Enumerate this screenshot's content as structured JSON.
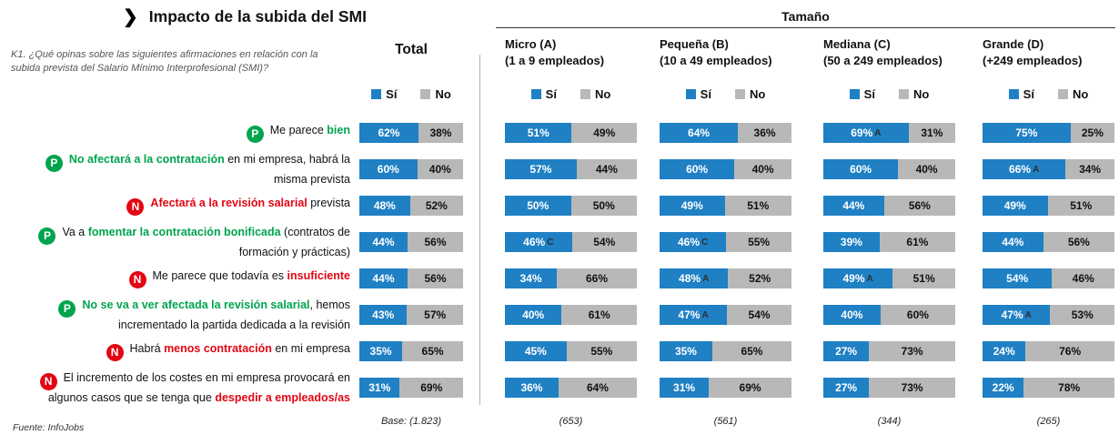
{
  "chart_data": {
    "type": "bar",
    "variant": "horizontal-stacked-100",
    "title": "Impacto de la subida del SMI",
    "title_icon": "❯",
    "question": "K1. ¿Qué opinas sobre las siguientes afirmaciones en relación con la subida prevista del Salario Mínimo Interprofesional (SMI)?",
    "group_header": "Tamaño",
    "legend": {
      "yes": "Sí",
      "no": "No"
    },
    "source": "Fuente: InfoJobs",
    "colors": {
      "yes": "#1f80c4",
      "no": "#b8b8b8",
      "positive": "#00a44e",
      "negative": "#e30613"
    },
    "columns": [
      {
        "id": "total",
        "label": "Total",
        "sublabel": "",
        "base": "Base: (1.823)"
      },
      {
        "id": "micro",
        "label": "Micro (A)",
        "sublabel": "(1 a 9 empleados)",
        "base": "(653)"
      },
      {
        "id": "pequena",
        "label": "Pequeña (B)",
        "sublabel": "(10 a 49 empleados)",
        "base": "(561)"
      },
      {
        "id": "mediana",
        "label": "Mediana (C)",
        "sublabel": "(50 a 249 empleados)",
        "base": "(344)"
      },
      {
        "id": "grande",
        "label": "Grande (D)",
        "sublabel": "(+249 empleados)",
        "base": "(265)"
      }
    ],
    "rows": [
      {
        "badge": "P",
        "segments": [
          {
            "text": "Me parece ",
            "style": "plain"
          },
          {
            "text": "bien",
            "style": "pos"
          }
        ],
        "values": [
          {
            "si": 62,
            "no": 38,
            "note": ""
          },
          {
            "si": 51,
            "no": 49,
            "note": ""
          },
          {
            "si": 64,
            "no": 36,
            "note": ""
          },
          {
            "si": 69,
            "no": 31,
            "note": "A"
          },
          {
            "si": 75,
            "no": 25,
            "note": ""
          }
        ]
      },
      {
        "badge": "P",
        "segments": [
          {
            "text": "No afectará a la contratación",
            "style": "pos"
          },
          {
            "text": " en mi empresa, habrá la misma prevista",
            "style": "plain"
          }
        ],
        "values": [
          {
            "si": 60,
            "no": 40,
            "note": ""
          },
          {
            "si": 57,
            "no": 44,
            "note": ""
          },
          {
            "si": 60,
            "no": 40,
            "note": ""
          },
          {
            "si": 60,
            "no": 40,
            "note": ""
          },
          {
            "si": 66,
            "no": 34,
            "note": "A"
          }
        ]
      },
      {
        "badge": "N",
        "segments": [
          {
            "text": "Afectará a la revisión salarial",
            "style": "neg"
          },
          {
            "text": " prevista",
            "style": "plain"
          }
        ],
        "values": [
          {
            "si": 48,
            "no": 52,
            "note": ""
          },
          {
            "si": 50,
            "no": 50,
            "note": ""
          },
          {
            "si": 49,
            "no": 51,
            "note": ""
          },
          {
            "si": 44,
            "no": 56,
            "note": ""
          },
          {
            "si": 49,
            "no": 51,
            "note": ""
          }
        ]
      },
      {
        "badge": "P",
        "segments": [
          {
            "text": "Va a ",
            "style": "plain"
          },
          {
            "text": "fomentar la contratación bonificada",
            "style": "pos"
          },
          {
            "text": " (contratos de formación y prácticas)",
            "style": "plain"
          }
        ],
        "values": [
          {
            "si": 44,
            "no": 56,
            "note": ""
          },
          {
            "si": 46,
            "no": 54,
            "note": "C"
          },
          {
            "si": 46,
            "no": 55,
            "note": "C"
          },
          {
            "si": 39,
            "no": 61,
            "note": ""
          },
          {
            "si": 44,
            "no": 56,
            "note": ""
          }
        ]
      },
      {
        "badge": "N",
        "segments": [
          {
            "text": "Me parece que todavía es ",
            "style": "plain"
          },
          {
            "text": "insuficiente",
            "style": "neg"
          }
        ],
        "values": [
          {
            "si": 44,
            "no": 56,
            "note": ""
          },
          {
            "si": 34,
            "no": 66,
            "note": ""
          },
          {
            "si": 48,
            "no": 52,
            "note": "A"
          },
          {
            "si": 49,
            "no": 51,
            "note": "A"
          },
          {
            "si": 54,
            "no": 46,
            "note": ""
          }
        ]
      },
      {
        "badge": "P",
        "segments": [
          {
            "text": "No se va a ver afectada la revisión salarial",
            "style": "pos"
          },
          {
            "text": ", hemos incrementado la partida dedicada a la revisión",
            "style": "plain"
          }
        ],
        "values": [
          {
            "si": 43,
            "no": 57,
            "note": ""
          },
          {
            "si": 40,
            "no": 61,
            "note": ""
          },
          {
            "si": 47,
            "no": 54,
            "note": "A"
          },
          {
            "si": 40,
            "no": 60,
            "note": ""
          },
          {
            "si": 47,
            "no": 53,
            "note": "A"
          }
        ]
      },
      {
        "badge": "N",
        "segments": [
          {
            "text": "Habrá ",
            "style": "plain"
          },
          {
            "text": "menos contratación",
            "style": "neg"
          },
          {
            "text": " en mi empresa",
            "style": "plain"
          }
        ],
        "values": [
          {
            "si": 35,
            "no": 65,
            "note": ""
          },
          {
            "si": 45,
            "no": 55,
            "note": ""
          },
          {
            "si": 35,
            "no": 65,
            "note": ""
          },
          {
            "si": 27,
            "no": 73,
            "note": ""
          },
          {
            "si": 24,
            "no": 76,
            "note": ""
          }
        ]
      },
      {
        "badge": "N",
        "segments": [
          {
            "text": "El incremento de los costes en mi empresa provocará en algunos casos que se tenga que ",
            "style": "plain"
          },
          {
            "text": "despedir a empleados/as",
            "style": "neg"
          }
        ],
        "values": [
          {
            "si": 31,
            "no": 69,
            "note": ""
          },
          {
            "si": 36,
            "no": 64,
            "note": ""
          },
          {
            "si": 31,
            "no": 69,
            "note": ""
          },
          {
            "si": 27,
            "no": 73,
            "note": ""
          },
          {
            "si": 22,
            "no": 78,
            "note": ""
          }
        ]
      }
    ]
  }
}
